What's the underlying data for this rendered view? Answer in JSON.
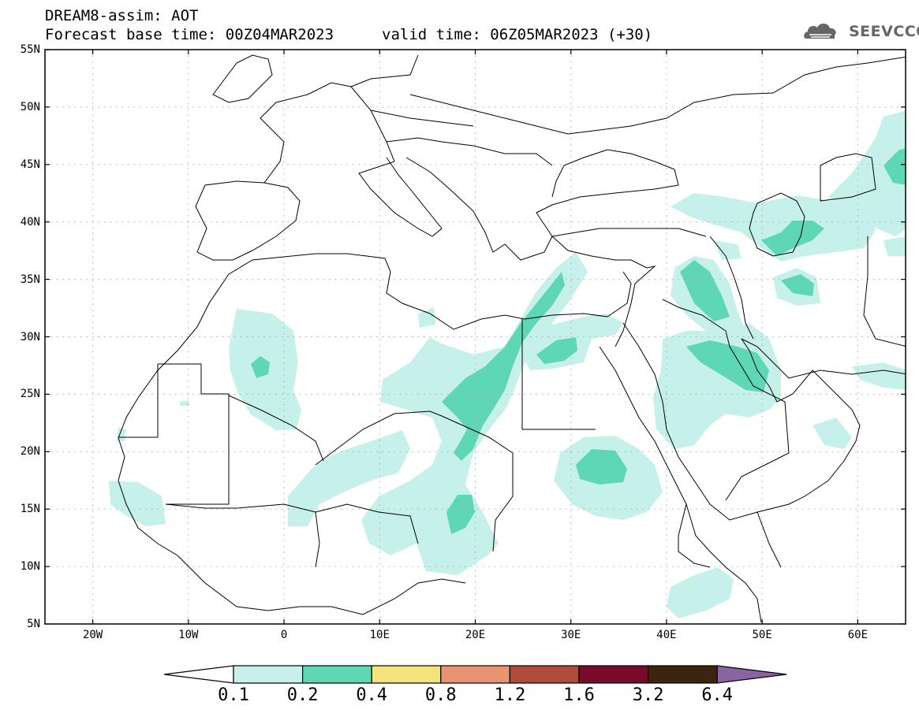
{
  "header": {
    "title": "DREAM8-assim: AOT",
    "base_time": "Forecast base time: 00Z04MAR2023",
    "valid_time": "valid time: 06Z05MAR2023 (+30)",
    "logo_text": "SEEVCCC"
  },
  "map": {
    "lon_range": [
      -25,
      65
    ],
    "lat_range": [
      5,
      55
    ],
    "lat_labels": [
      "55N",
      "50N",
      "45N",
      "40N",
      "35N",
      "30N",
      "25N",
      "20N",
      "15N",
      "10N",
      "5N"
    ],
    "lon_labels": [
      "20W",
      "10W",
      "0",
      "10E",
      "20E",
      "30E",
      "40E",
      "50E",
      "60E"
    ],
    "gridlines": "dotted"
  },
  "colorbar": {
    "labels": [
      "0.1",
      "0.2",
      "0.4",
      "0.8",
      "1.2",
      "1.6",
      "3.2",
      "6.4"
    ],
    "colors": {
      "below": "#ffffff",
      "c1": "#c6f0ea",
      "c2": "#5ed8b4",
      "c3": "#f4e27a",
      "c4": "#ea9370",
      "c5": "#b04c3c",
      "c6": "#7a0a2a",
      "c7": "#3c2410",
      "above": "#8a64a0"
    }
  }
}
